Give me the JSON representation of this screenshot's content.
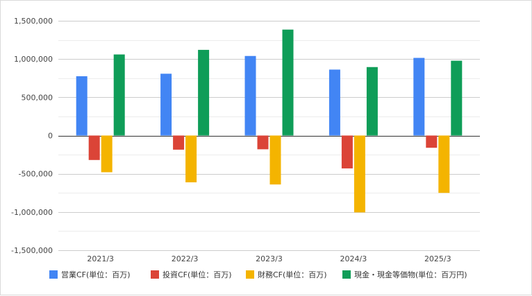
{
  "chart_data": {
    "type": "bar",
    "categories": [
      "2021/3",
      "2022/3",
      "2023/3",
      "2024/3",
      "2025/3"
    ],
    "series": [
      {
        "name": "営業CF(単位：百万)",
        "color": "#4285f4",
        "values": [
          775000,
          808000,
          1040000,
          862000,
          1015000
        ]
      },
      {
        "name": "投資CF(単位：百万)",
        "color": "#db4437",
        "values": [
          -320000,
          -185000,
          -180000,
          -430000,
          -160000
        ]
      },
      {
        "name": "財務CF(単位：百万)",
        "color": "#f4b400",
        "values": [
          -480000,
          -612000,
          -640000,
          -1005000,
          -750000
        ]
      },
      {
        "name": "現金・現金等価物(単位：百万円)",
        "color": "#0f9d58",
        "values": [
          1060000,
          1120000,
          1385000,
          895000,
          978000
        ]
      }
    ],
    "ylim": [
      -1500000,
      1500000
    ],
    "yticks": [
      1500000,
      1000000,
      500000,
      0,
      -500000,
      -1000000,
      -1500000
    ],
    "ytick_labels": [
      "1,500,000",
      "1,000,000",
      "500,000",
      "0",
      "-500,000",
      "-1,000,000",
      "-1,500,000"
    ],
    "minor_grid_step": 250000,
    "grid": true,
    "legend_position": "bottom",
    "title": "",
    "xlabel": "",
    "ylabel": ""
  }
}
